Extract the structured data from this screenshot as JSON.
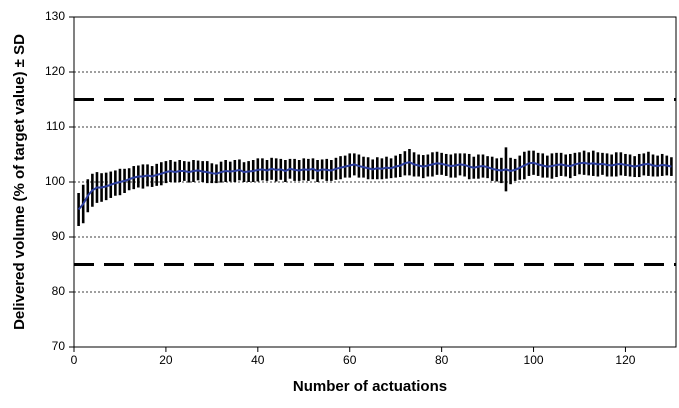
{
  "chart_data": {
    "type": "errorline",
    "x_label": "Number of actuations",
    "y_label": "Delivered volume (% of target value) ± SD",
    "x": [
      1,
      2,
      3,
      4,
      5,
      6,
      7,
      8,
      9,
      10,
      11,
      12,
      13,
      14,
      15,
      16,
      17,
      18,
      19,
      20,
      21,
      22,
      23,
      24,
      25,
      26,
      27,
      28,
      29,
      30,
      31,
      32,
      33,
      34,
      35,
      36,
      37,
      38,
      39,
      40,
      41,
      42,
      43,
      44,
      45,
      46,
      47,
      48,
      49,
      50,
      51,
      52,
      53,
      54,
      55,
      56,
      57,
      58,
      59,
      60,
      61,
      62,
      63,
      64,
      65,
      66,
      67,
      68,
      69,
      70,
      71,
      72,
      73,
      74,
      75,
      76,
      77,
      78,
      79,
      80,
      81,
      82,
      83,
      84,
      85,
      86,
      87,
      88,
      89,
      90,
      91,
      92,
      93,
      94,
      95,
      96,
      97,
      98,
      99,
      100,
      101,
      102,
      103,
      104,
      105,
      106,
      107,
      108,
      109,
      110,
      111,
      112,
      113,
      114,
      115,
      116,
      117,
      118,
      119,
      120,
      121,
      122,
      123,
      124,
      125,
      126,
      127,
      128,
      129,
      130
    ],
    "series": [
      {
        "color": "#2e3f9e",
        "bar_color": "#000000",
        "values": [
          95,
          96,
          97.5,
          98.5,
          99,
          99,
          99.2,
          99.5,
          99.8,
          100,
          100.2,
          100.5,
          100.8,
          101,
          101,
          101.2,
          101,
          101.3,
          101.5,
          101.8,
          102,
          101.8,
          102,
          102,
          101.8,
          102,
          102.1,
          101.9,
          101.8,
          101.6,
          101.5,
          101.8,
          102,
          101.9,
          102,
          102.2,
          101.8,
          101.9,
          102,
          102.2,
          102.3,
          102.1,
          102.4,
          102.2,
          102.3,
          102,
          102.4,
          102.2,
          102.1,
          102.3,
          102.2,
          102.4,
          102,
          102.3,
          102.2,
          102.1,
          102.4,
          102.6,
          102.8,
          103,
          103.2,
          102.9,
          102.7,
          102.5,
          102.3,
          102.5,
          102.4,
          102.6,
          102.5,
          102.8,
          103,
          103.4,
          103.6,
          103.2,
          103,
          102.8,
          103,
          103.2,
          103.4,
          103.3,
          103.1,
          102.9,
          103,
          103.2,
          103.1,
          102.8,
          102.6,
          102.8,
          102.9,
          102.7,
          102.4,
          102.2,
          102.1,
          102.3,
          102,
          102.2,
          102.6,
          103,
          103.4,
          103.5,
          103.2,
          103,
          102.8,
          102.9,
          103.1,
          103.2,
          103,
          102.9,
          103.2,
          103.4,
          103.5,
          103.3,
          103.4,
          103.2,
          103.3,
          103.1,
          103,
          103.2,
          103.3,
          103.1,
          103,
          102.8,
          103,
          103.2,
          103.3,
          103,
          102.9,
          103.1,
          103,
          102.8
        ],
        "errors": [
          3,
          3.5,
          3,
          3,
          2.8,
          2.6,
          2.5,
          2.4,
          2.3,
          2.4,
          2.2,
          2,
          2.1,
          2,
          2.2,
          2,
          1.9,
          2,
          2.1,
          2,
          2,
          1.9,
          2,
          1.8,
          1.9,
          2,
          1.8,
          1.9,
          2,
          1.8,
          1.7,
          1.9,
          2,
          1.8,
          2,
          1.9,
          1.8,
          1.9,
          2,
          2.1,
          2,
          1.9,
          2,
          2.1,
          1.9,
          2,
          1.8,
          2,
          1.9,
          2,
          2,
          1.9,
          2,
          1.8,
          2,
          1.9,
          2,
          2.1,
          2,
          2.2,
          2,
          2.1,
          1.9,
          2,
          1.8,
          2,
          1.9,
          2,
          1.8,
          2,
          2.1,
          2.2,
          2.4,
          2.2,
          2,
          2.1,
          2,
          2.2,
          2.1,
          2,
          2,
          2.1,
          2.2,
          2,
          2.1,
          2.3,
          2,
          2.2,
          2.1,
          2,
          2.2,
          2.1,
          2.3,
          4,
          2.4,
          2,
          2.2,
          2.5,
          2.3,
          2.2,
          2.1,
          2.2,
          2,
          2.3,
          2.2,
          2.1,
          2,
          2.2,
          2.1,
          2,
          2.2,
          2.1,
          2.3,
          2.2,
          2,
          2.1,
          2,
          2.2,
          2.1,
          2,
          2,
          1.9,
          2.1,
          2,
          2.2,
          2,
          1.9,
          2,
          1.8,
          1.7
        ]
      }
    ],
    "reference_lines": [
      85,
      115
    ],
    "xlim": [
      0,
      131
    ],
    "xticks": [
      0,
      20,
      40,
      60,
      80,
      100,
      120
    ],
    "ylim": [
      70,
      130
    ],
    "yticks": [
      70,
      80,
      90,
      100,
      110,
      120,
      130
    ],
    "grid": true
  }
}
